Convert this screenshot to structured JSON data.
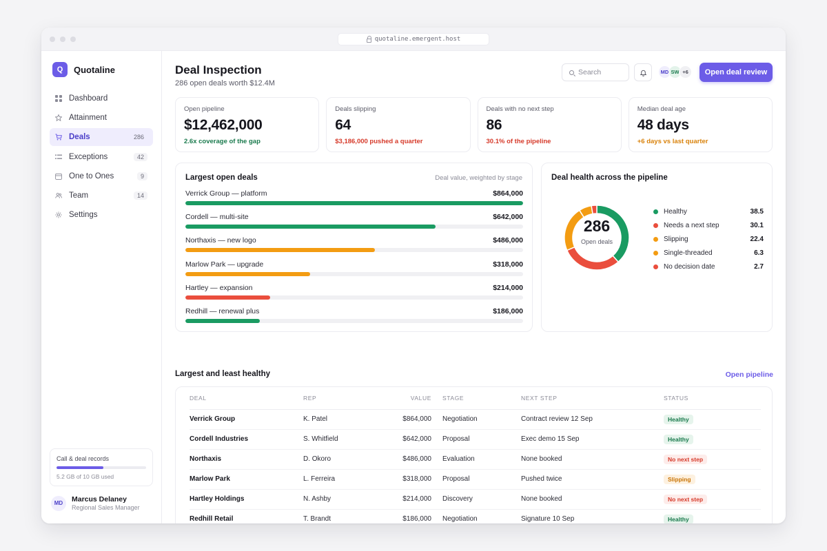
{
  "browser": {
    "url": "quotaline.emergent.host"
  },
  "brand": {
    "logo_letter": "Q",
    "name": "Quotaline"
  },
  "sidebar": {
    "items": [
      {
        "label": "Dashboard",
        "icon": "grid-icon",
        "count": ""
      },
      {
        "label": "Attainment",
        "icon": "star-icon",
        "count": ""
      },
      {
        "label": "Deals",
        "icon": "cart-icon",
        "count": "286",
        "active": true
      },
      {
        "label": "Exceptions",
        "icon": "list-icon",
        "count": "42"
      },
      {
        "label": "One to Ones",
        "icon": "calendar-icon",
        "count": "9"
      },
      {
        "label": "Team",
        "icon": "users-icon",
        "count": "14"
      },
      {
        "label": "Settings",
        "icon": "gear-icon",
        "count": ""
      }
    ],
    "storage": {
      "title": "Call & deal records",
      "used_text": "5.2 GB of 10 GB used",
      "used_fraction": 0.52
    },
    "user": {
      "initials": "MD",
      "name": "Marcus Delaney",
      "role": "Regional Sales Manager"
    }
  },
  "header": {
    "title": "Deal Inspection",
    "subtitle": "286 open deals worth $12.4M",
    "search_placeholder": "Search",
    "avatars": [
      "MD",
      "SW",
      "+6"
    ],
    "primary_button": "Open deal review"
  },
  "kpis": [
    {
      "label": "Open pipeline",
      "value": "$12,462,000",
      "delta": "2.6x coverage of the gap",
      "tone": "good"
    },
    {
      "label": "Deals slipping",
      "value": "64",
      "delta": "$3,186,000 pushed a quarter",
      "tone": "bad"
    },
    {
      "label": "Deals with no next step",
      "value": "86",
      "delta": "30.1% of the pipeline",
      "tone": "bad"
    },
    {
      "label": "Median deal age",
      "value": "48 days",
      "delta": "+6 days vs last quarter",
      "tone": "warn"
    }
  ],
  "largest_deals": {
    "title": "Largest open deals",
    "note": "Deal value, weighted by stage",
    "rows": [
      {
        "label": "Verrick Group — platform",
        "value": "$864,000",
        "fill": 1.0,
        "color": "#1a9b62"
      },
      {
        "label": "Cordell — multi-site",
        "value": "$642,000",
        "fill": 0.74,
        "color": "#1a9b62"
      },
      {
        "label": "Northaxis — new logo",
        "value": "$486,000",
        "fill": 0.562,
        "color": "#f39c12"
      },
      {
        "label": "Marlow Park — upgrade",
        "value": "$318,000",
        "fill": 0.37,
        "color": "#f39c12"
      },
      {
        "label": "Hartley — expansion",
        "value": "$214,000",
        "fill": 0.25,
        "color": "#ea4e3d"
      },
      {
        "label": "Redhill — renewal plus",
        "value": "$186,000",
        "fill": 0.22,
        "color": "#1a9b62"
      }
    ]
  },
  "health": {
    "title": "Deal health across the pipeline",
    "center_value": "286",
    "center_label": "Open deals",
    "chart_data": {
      "type": "pie",
      "categories": [
        "Healthy",
        "Needs a next step",
        "Slipping",
        "Single-threaded",
        "No decision date"
      ],
      "values": [
        38.5,
        30.1,
        22.4,
        6.3,
        2.7
      ],
      "colors": [
        "#1a9b62",
        "#ea4e3d",
        "#f39c12",
        "#f39c12",
        "#ea4e3d"
      ]
    }
  },
  "table": {
    "title": "Largest and least healthy",
    "link": "Open pipeline",
    "columns": [
      "DEAL",
      "REP",
      "VALUE",
      "STAGE",
      "NEXT STEP",
      "STATUS"
    ],
    "rows": [
      {
        "deal": "Verrick Group",
        "rep": "K. Patel",
        "value": "$864,000",
        "stage": "Negotiation",
        "next": "Contract review 12 Sep",
        "status": "Healthy",
        "tone": "good"
      },
      {
        "deal": "Cordell Industries",
        "rep": "S. Whitfield",
        "value": "$642,000",
        "stage": "Proposal",
        "next": "Exec demo 15 Sep",
        "status": "Healthy",
        "tone": "good"
      },
      {
        "deal": "Northaxis",
        "rep": "D. Okoro",
        "value": "$486,000",
        "stage": "Evaluation",
        "next": "None booked",
        "status": "No next step",
        "tone": "bad"
      },
      {
        "deal": "Marlow Park",
        "rep": "L. Ferreira",
        "value": "$318,000",
        "stage": "Proposal",
        "next": "Pushed twice",
        "status": "Slipping",
        "tone": "warn"
      },
      {
        "deal": "Hartley Holdings",
        "rep": "N. Ashby",
        "value": "$214,000",
        "stage": "Discovery",
        "next": "None booked",
        "status": "No next step",
        "tone": "bad"
      },
      {
        "deal": "Redhill Retail",
        "rep": "T. Brandt",
        "value": "$186,000",
        "stage": "Negotiation",
        "next": "Signature 10 Sep",
        "status": "Healthy",
        "tone": "good"
      }
    ]
  },
  "colors": {
    "accent": "#6c5ce7",
    "good": "#1a9b62",
    "bad": "#ea4e3d",
    "warn": "#f39c12"
  }
}
